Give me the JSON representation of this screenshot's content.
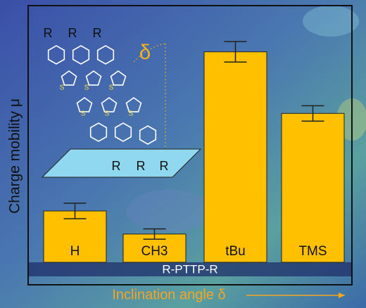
{
  "chart_data": {
    "type": "bar",
    "categories": [
      "H",
      "CH3",
      "tBu",
      "TMS"
    ],
    "values": [
      20,
      11,
      82,
      58
    ],
    "errors": [
      3,
      2,
      4,
      3
    ],
    "color": "#ffc000",
    "ylim": [
      0,
      100
    ],
    "y_label": "Charge mobility μ",
    "x_label": "Inclination angle δ",
    "band_label": "R-PTTP-R",
    "inset": {
      "top_labels": [
        "R",
        "R",
        "R"
      ],
      "bottom_labels": [
        "R",
        "R",
        "R"
      ],
      "sulfur_labels": [
        "S",
        "S",
        "S",
        "S",
        "S",
        "S"
      ],
      "angle_label": "δ"
    }
  }
}
